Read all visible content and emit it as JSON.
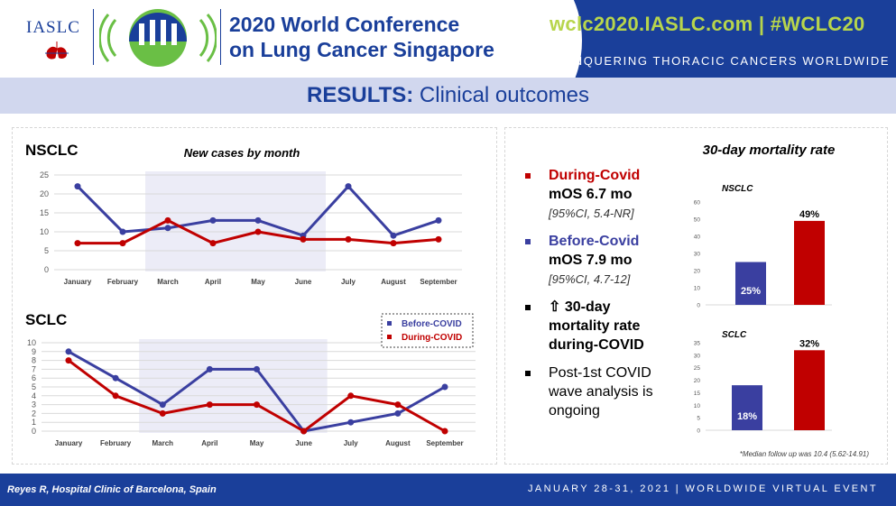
{
  "header": {
    "org": "IASLC",
    "conference_line1": "2020 World Conference",
    "conference_line2": "on Lung Cancer Singapore",
    "site": "wclc2020.IASLC.com | #WCLC20",
    "tagline": "CONQUERING THORACIC CANCERS WORLDWIDE"
  },
  "title": {
    "bold": "RESULTS:",
    "rest": " Clinical outcomes"
  },
  "legend": {
    "before": "Before-COVID",
    "during": "During-COVID"
  },
  "bullets": [
    {
      "head": "During-Covid",
      "line2": "mOS 6.7 mo",
      "line3": "[95%CI, 5.4-NR]"
    },
    {
      "head": "Before-Covid",
      "line2": "mOS 7.9 mo",
      "line3": "[95%CI, 4.7-12]"
    },
    {
      "head": "⇧ 30-day mortality rate during-COVID"
    },
    {
      "head": "Post-1st COVID wave analysis is ongoing"
    }
  ],
  "mortality_title": "30-day mortality rate",
  "footnote": "*Median follow up was 10.4 (5.62-14.91)",
  "footer": {
    "credit": "Reyes R, Hospital Clinic of Barcelona, Spain",
    "event": "JANUARY 28-31, 2021 | WORLDWIDE VIRTUAL EVENT"
  },
  "colors": {
    "before": "#3a3fa0",
    "during": "#c00000",
    "brand": "#1a3f9a",
    "accent": "#b7d54c"
  },
  "chart_data": [
    {
      "type": "line",
      "panel_label": "NSCLC",
      "title": "New cases by month",
      "categories": [
        "January",
        "February",
        "March",
        "April",
        "May",
        "June",
        "July",
        "August",
        "September"
      ],
      "series": [
        {
          "name": "Before-COVID",
          "values": [
            22,
            10,
            11,
            13,
            13,
            9,
            22,
            9,
            13
          ]
        },
        {
          "name": "During-COVID",
          "values": [
            7,
            7,
            13,
            7,
            10,
            8,
            8,
            7,
            8
          ]
        }
      ],
      "yticks": [
        0,
        5,
        10,
        15,
        20,
        25
      ],
      "ylim": [
        0,
        25
      ],
      "grid": true
    },
    {
      "type": "line",
      "panel_label": "SCLC",
      "categories": [
        "January",
        "February",
        "March",
        "April",
        "May",
        "June",
        "July",
        "August",
        "September"
      ],
      "series": [
        {
          "name": "Before-COVID",
          "values": [
            9,
            6,
            3,
            7,
            7,
            0,
            1,
            2,
            5
          ]
        },
        {
          "name": "During-COVID",
          "values": [
            8,
            4,
            2,
            3,
            3,
            0,
            4,
            3,
            0
          ]
        }
      ],
      "yticks": [
        0,
        1,
        2,
        3,
        4,
        5,
        6,
        7,
        8,
        9,
        10
      ],
      "ylim": [
        0,
        10
      ],
      "grid": true,
      "legend": "top-right"
    },
    {
      "type": "bar",
      "title": "NSCLC",
      "categories": [
        "Before-COVID",
        "During-COVID"
      ],
      "values": [
        25,
        49
      ],
      "labels": [
        "25%",
        "49%"
      ],
      "yticks": [
        0,
        10,
        20,
        30,
        40,
        50,
        60
      ],
      "ylim": [
        0,
        60
      ]
    },
    {
      "type": "bar",
      "title": "SCLC",
      "categories": [
        "Before-COVID",
        "During-COVID"
      ],
      "values": [
        18,
        32
      ],
      "labels": [
        "18%",
        "32%"
      ],
      "yticks": [
        0,
        5,
        10,
        15,
        20,
        25,
        30,
        35
      ],
      "ylim": [
        0,
        35
      ]
    }
  ]
}
